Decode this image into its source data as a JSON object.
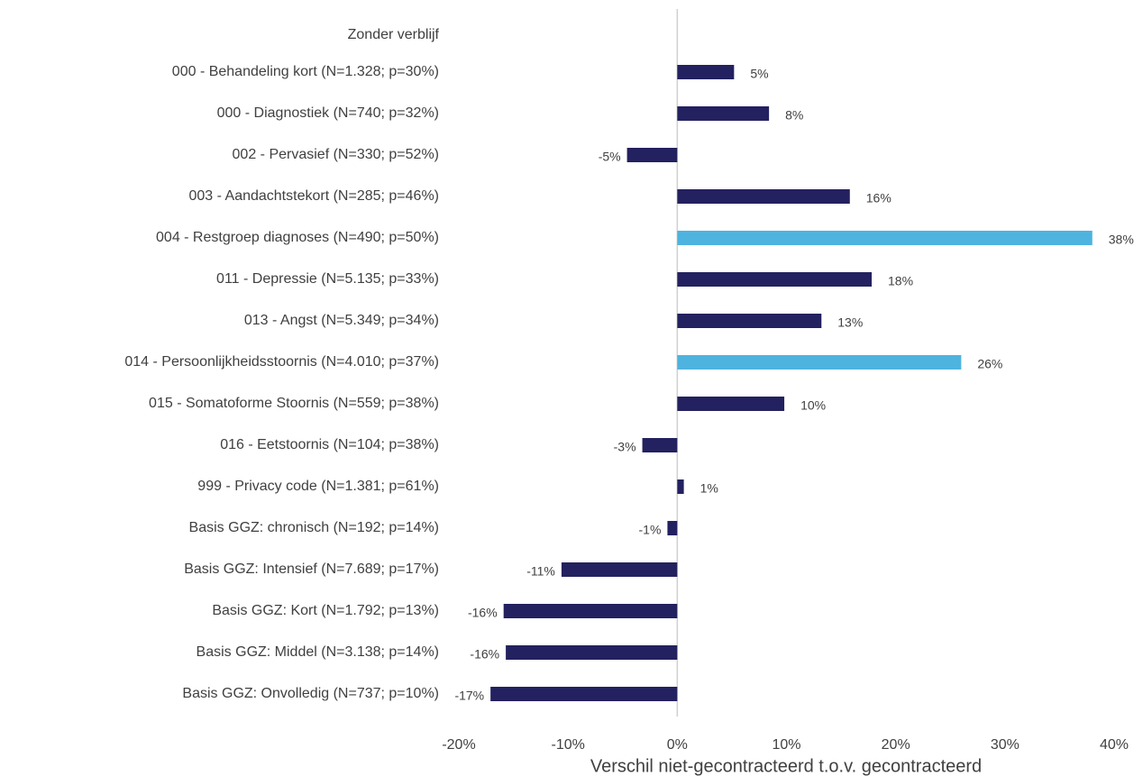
{
  "chart_data": {
    "type": "bar",
    "orientation": "horizontal",
    "categories": [
      "Zonder verblijf",
      "000 - Behandeling kort (N=1.328; p=30%)",
      "000 - Diagnostiek (N=740; p=32%)",
      "002 - Pervasief (N=330; p=52%)",
      "003 - Aandachtstekort (N=285; p=46%)",
      "004 - Restgroep diagnoses (N=490; p=50%)",
      "011 - Depressie (N=5.135; p=33%)",
      "013 - Angst (N=5.349; p=34%)",
      "014 - Persoonlijkheidsstoornis (N=4.010; p=37%)",
      "015 - Somatoforme Stoornis (N=559; p=38%)",
      "016 - Eetstoornis (N=104; p=38%)",
      "999 - Privacy code (N=1.381; p=61%)",
      "Basis GGZ: chronisch (N=192; p=14%)",
      "Basis GGZ: Intensief (N=7.689; p=17%)",
      "Basis GGZ: Kort (N=1.792; p=13%)",
      "Basis GGZ: Middel (N=3.138; p=14%)",
      "Basis GGZ: Onvolledig (N=737; p=10%)"
    ],
    "values": [
      null,
      5.2,
      8.4,
      -4.6,
      15.8,
      38.0,
      17.8,
      13.2,
      26.0,
      9.8,
      -3.2,
      0.6,
      -0.9,
      -10.6,
      -15.9,
      -15.7,
      -17.1
    ],
    "value_labels": [
      null,
      "5%",
      "8%",
      "-5%",
      "16%",
      "38%",
      "18%",
      "13%",
      "26%",
      "10%",
      "-3%",
      "1%",
      "-1%",
      "-11%",
      "-16%",
      "-16%",
      "-17%"
    ],
    "colors": [
      null,
      "#23215f",
      "#23215f",
      "#23215f",
      "#23215f",
      "#4eb3df",
      "#23215f",
      "#23215f",
      "#4eb3df",
      "#23215f",
      "#23215f",
      "#23215f",
      "#23215f",
      "#23215f",
      "#23215f",
      "#23215f",
      "#23215f"
    ],
    "xlim": [
      -20,
      40
    ],
    "xticks": [
      {
        "value": -20,
        "label": "-20%"
      },
      {
        "value": -10,
        "label": "-10%"
      },
      {
        "value": 0,
        "label": "0%"
      },
      {
        "value": 10,
        "label": "10%"
      },
      {
        "value": 20,
        "label": "20%"
      },
      {
        "value": 30,
        "label": "30%"
      },
      {
        "value": 40,
        "label": "40%"
      }
    ],
    "xlabel": "Verschil niet-gecontracteerd t.o.v. gecontracteerd"
  }
}
